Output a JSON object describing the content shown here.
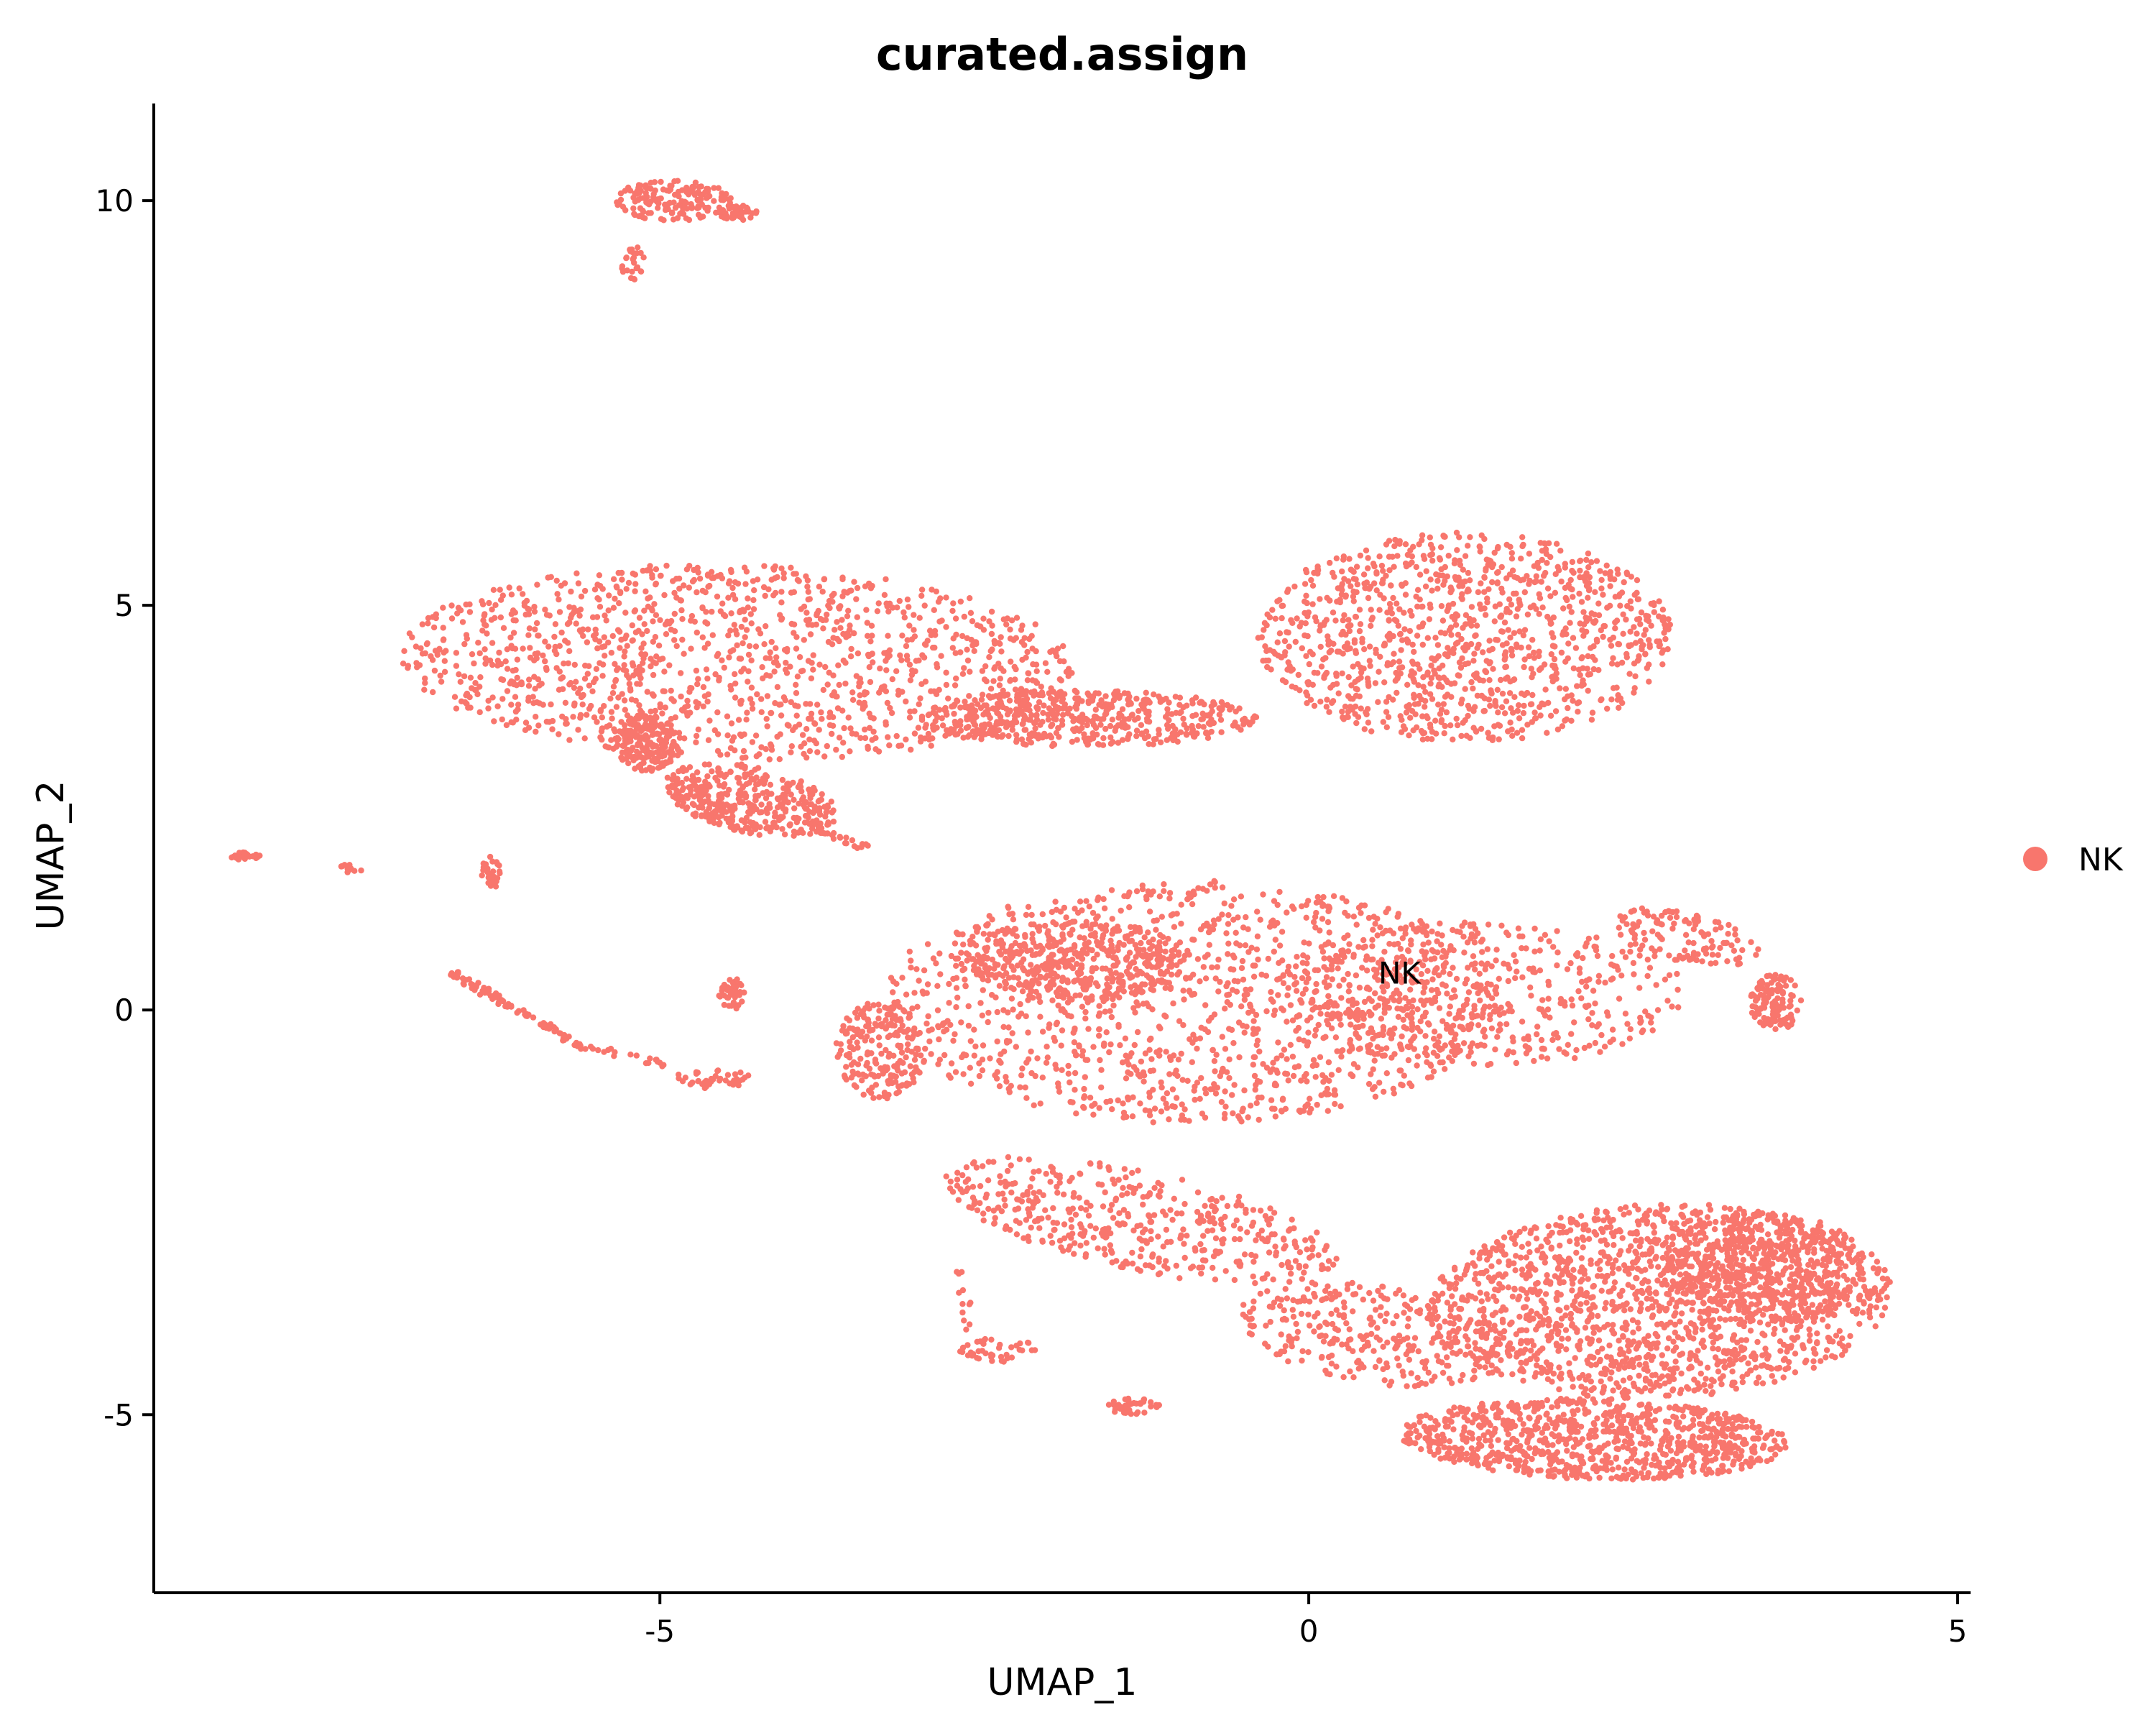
{
  "chart_data": {
    "type": "scatter",
    "title": "curated.assign",
    "xlabel": "UMAP_1",
    "ylabel": "UMAP_2",
    "xlim": [
      -8.9,
      5.1
    ],
    "ylim": [
      -7.2,
      11.2
    ],
    "xticks": [
      -5,
      0,
      5
    ],
    "xtick_labels": [
      "-5",
      "0",
      "5"
    ],
    "yticks": [
      -5,
      0,
      5,
      10
    ],
    "ytick_labels": [
      "-5",
      "0",
      "5",
      "10"
    ],
    "grid": false,
    "legend": {
      "position": "right",
      "entries": [
        {
          "name": "NK",
          "color": "#F8766D"
        }
      ]
    },
    "annotations": [
      {
        "text": "NK",
        "x": 0.7,
        "y": 0.45
      }
    ],
    "point_color": "#F8766D",
    "series": [
      {
        "name": "NK",
        "clusters": [
          {
            "cx": -4.4,
            "cy": 4.3,
            "rx": 2.6,
            "ry": 1.2,
            "n": 1300,
            "rot": -0.05
          },
          {
            "cx": 1.2,
            "cy": 4.6,
            "rx": 1.6,
            "ry": 1.3,
            "n": 1100,
            "rot": 0
          },
          {
            "cx": -1.7,
            "cy": 3.6,
            "rx": 1.3,
            "ry": 0.35,
            "n": 500,
            "rot": 0
          },
          {
            "cx": -0.9,
            "cy": 0.1,
            "rx": 2.4,
            "ry": 1.5,
            "n": 1200,
            "rot": 0
          },
          {
            "cx": -1.8,
            "cy": 0.6,
            "rx": 0.9,
            "ry": 0.5,
            "n": 400,
            "rot": 0
          },
          {
            "cx": 1.3,
            "cy": 0.2,
            "rx": 1.6,
            "ry": 0.9,
            "n": 500,
            "rot": 0
          },
          {
            "cx": -3.3,
            "cy": -0.5,
            "rx": 0.35,
            "ry": 0.6,
            "n": 200,
            "rot": 0
          },
          {
            "cx": -1.3,
            "cy": -2.6,
            "rx": 1.6,
            "ry": 0.6,
            "n": 450,
            "rot": -0.35
          },
          {
            "cx": 0.5,
            "cy": -4.0,
            "rx": 1.1,
            "ry": 0.6,
            "n": 300,
            "rot": -0.3
          },
          {
            "cx": 2.7,
            "cy": -3.6,
            "rx": 1.8,
            "ry": 1.2,
            "n": 1500,
            "rot": 0.1
          },
          {
            "cx": 2.2,
            "cy": -5.3,
            "rx": 1.5,
            "ry": 0.5,
            "n": 900,
            "rot": -0.05
          },
          {
            "cx": 3.5,
            "cy": -3.2,
            "rx": 0.8,
            "ry": 0.7,
            "n": 500,
            "rot": 0
          },
          {
            "cx": 3.6,
            "cy": 0.1,
            "rx": 0.2,
            "ry": 0.35,
            "n": 120,
            "rot": 0
          },
          {
            "cx": 2.9,
            "cy": 0.9,
            "rx": 0.6,
            "ry": 0.3,
            "n": 120,
            "rot": -0.4
          },
          {
            "cx": -5.1,
            "cy": 3.3,
            "rx": 0.25,
            "ry": 0.35,
            "n": 180,
            "rot": 0
          },
          {
            "cx": -4.3,
            "cy": 2.6,
            "rx": 0.7,
            "ry": 0.4,
            "n": 380,
            "rot": -0.4
          },
          {
            "cx": -4.9,
            "cy": 10.0,
            "rx": 0.45,
            "ry": 0.25,
            "n": 160,
            "rot": 0
          },
          {
            "cx": -4.4,
            "cy": 9.85,
            "rx": 0.15,
            "ry": 0.1,
            "n": 40,
            "rot": 0
          },
          {
            "cx": -5.2,
            "cy": 9.2,
            "rx": 0.1,
            "ry": 0.25,
            "n": 25,
            "rot": 0
          },
          {
            "cx": -8.2,
            "cy": 1.9,
            "rx": 0.12,
            "ry": 0.05,
            "n": 25,
            "rot": 0
          },
          {
            "cx": -7.4,
            "cy": 1.75,
            "rx": 0.12,
            "ry": 0.05,
            "n": 12,
            "rot": 0
          },
          {
            "cx": -6.3,
            "cy": 1.7,
            "rx": 0.08,
            "ry": 0.2,
            "n": 30,
            "rot": 0
          },
          {
            "cx": -4.45,
            "cy": 0.2,
            "rx": 0.1,
            "ry": 0.2,
            "n": 40,
            "rot": 0
          },
          {
            "cx": -4.6,
            "cy": -0.85,
            "rx": 0.3,
            "ry": 0.12,
            "n": 40,
            "rot": 0
          },
          {
            "cx": -2.4,
            "cy": -4.2,
            "rx": 0.3,
            "ry": 0.15,
            "n": 40,
            "rot": 0
          },
          {
            "cx": -1.35,
            "cy": -4.9,
            "rx": 0.2,
            "ry": 0.1,
            "n": 40,
            "rot": 0
          }
        ],
        "trails": [
          {
            "x0": -6.6,
            "y0": 0.45,
            "x1": -5.6,
            "y1": -0.45,
            "n": 90
          },
          {
            "x0": -5.6,
            "y0": -0.45,
            "x1": -4.9,
            "y1": -0.7,
            "n": 20
          },
          {
            "x0": -2.7,
            "y0": -3.2,
            "x1": -2.6,
            "y1": -4.0,
            "n": 12
          },
          {
            "x0": -3.9,
            "y0": 2.3,
            "x1": -3.4,
            "y1": 2.0,
            "n": 25
          }
        ]
      }
    ]
  }
}
